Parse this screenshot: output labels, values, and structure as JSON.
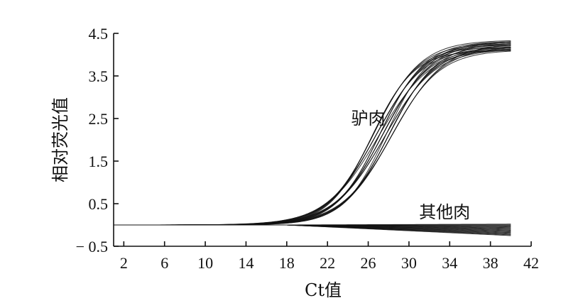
{
  "chart_data": {
    "type": "line",
    "xlabel": "Ct值",
    "ylabel": "相对荧光值",
    "xlim": [
      1,
      42
    ],
    "ylim": [
      -0.5,
      4.5
    ],
    "x_ticks": [
      2,
      6,
      10,
      14,
      18,
      22,
      26,
      30,
      34,
      38,
      42
    ],
    "y_ticks": [
      -0.5,
      0.5,
      1.5,
      2.5,
      3.5,
      4.5
    ],
    "y_tick_labels": [
      "− 0.5",
      "0.5",
      "1.5",
      "2.5",
      "3.5",
      "4.5"
    ],
    "annotations": [
      {
        "text": "驴肉",
        "x": 26,
        "y": 2.5
      },
      {
        "text": "其他肉",
        "x": 33.5,
        "y": 0.3
      }
    ],
    "groups": [
      {
        "label": "驴肉",
        "kind": "amplification",
        "x_start": 1,
        "x_end": 40,
        "baseline": 0,
        "midpoint_range": [
          26.3,
          28.4
        ],
        "plateau_range": [
          4.1,
          4.35
        ],
        "slope_range": [
          2.1,
          2.6
        ],
        "count": 22
      },
      {
        "label": "其他肉",
        "kind": "flat",
        "x_start": 1,
        "x_end": 40,
        "end_value_range": [
          -0.25,
          0.02
        ],
        "count": 16
      }
    ]
  }
}
